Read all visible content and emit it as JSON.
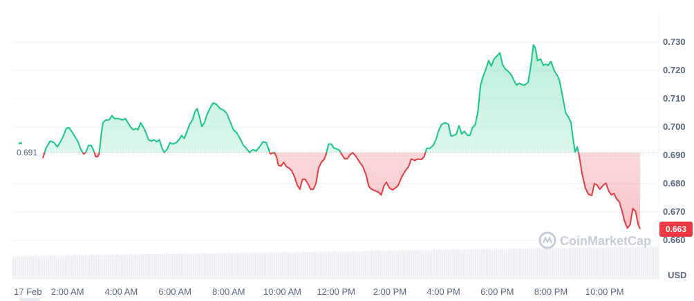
{
  "chart_data": {
    "type": "area",
    "x_labels": [
      "17 Feb",
      "2:00 AM",
      "4:00 AM",
      "6:00 AM",
      "8:00 AM",
      "10:00 AM",
      "12:00 PM",
      "2:00 PM",
      "4:00 PM",
      "6:00 PM",
      "8:00 PM",
      "10:00 PM"
    ],
    "x_label_hours": [
      0,
      2,
      4,
      6,
      8,
      10,
      12,
      14,
      16,
      18,
      20,
      22
    ],
    "y_ticks": [
      0.66,
      0.67,
      0.68,
      0.69,
      0.7,
      0.71,
      0.72,
      0.73
    ],
    "ylim": [
      0.6575,
      0.7365
    ],
    "xlim_hours": [
      0,
      24
    ],
    "ylabel": "USD",
    "baseline": 0.691,
    "baseline_label": "0.691",
    "last_label": "0.663",
    "colors": {
      "up": "#16c784",
      "down": "#ea3943",
      "up_fill": "#16c784",
      "down_fill": "#ea3943"
    },
    "watermark": "CoinMarketCap",
    "grid": true,
    "series": [
      {
        "points": [
          [
            0.18,
            0.694
          ],
          [
            0.25,
            0.6945
          ],
          [
            0.3,
            0.694
          ],
          [
            1.08,
            0.689
          ],
          [
            1.2,
            0.6925
          ],
          [
            1.35,
            0.695
          ],
          [
            1.5,
            0.6945
          ],
          [
            1.62,
            0.693
          ],
          [
            1.75,
            0.695
          ],
          [
            1.85,
            0.697
          ],
          [
            1.95,
            0.6995
          ],
          [
            2.05,
            0.6998
          ],
          [
            2.15,
            0.6985
          ],
          [
            2.25,
            0.697
          ],
          [
            2.38,
            0.695
          ],
          [
            2.5,
            0.692
          ],
          [
            2.6,
            0.6905
          ],
          [
            2.68,
            0.691
          ],
          [
            2.78,
            0.6935
          ],
          [
            2.88,
            0.6935
          ],
          [
            2.98,
            0.6915
          ],
          [
            3.05,
            0.6895
          ],
          [
            3.12,
            0.6895
          ],
          [
            3.18,
            0.6905
          ],
          [
            3.25,
            0.697
          ],
          [
            3.32,
            0.7015
          ],
          [
            3.42,
            0.7025
          ],
          [
            3.55,
            0.7025
          ],
          [
            3.65,
            0.704
          ],
          [
            3.75,
            0.703
          ],
          [
            3.9,
            0.703
          ],
          [
            4.05,
            0.7025
          ],
          [
            4.15,
            0.703
          ],
          [
            4.25,
            0.7015
          ],
          [
            4.35,
            0.7
          ],
          [
            4.45,
            0.699
          ],
          [
            4.55,
            0.6995
          ],
          [
            4.62,
            0.699
          ],
          [
            4.72,
            0.7015
          ],
          [
            4.82,
            0.7
          ],
          [
            4.92,
            0.698
          ],
          [
            5.02,
            0.6955
          ],
          [
            5.12,
            0.695
          ],
          [
            5.22,
            0.6955
          ],
          [
            5.32,
            0.6948
          ],
          [
            5.42,
            0.6955
          ],
          [
            5.52,
            0.6925
          ],
          [
            5.6,
            0.691
          ],
          [
            5.7,
            0.692
          ],
          [
            5.82,
            0.6945
          ],
          [
            5.92,
            0.694
          ],
          [
            6.05,
            0.6945
          ],
          [
            6.15,
            0.6955
          ],
          [
            6.25,
            0.697
          ],
          [
            6.35,
            0.696
          ],
          [
            6.45,
            0.6985
          ],
          [
            6.55,
            0.701
          ],
          [
            6.65,
            0.7025
          ],
          [
            6.75,
            0.7055
          ],
          [
            6.82,
            0.7065
          ],
          [
            6.92,
            0.7035
          ],
          [
            7.0,
            0.7002
          ],
          [
            7.1,
            0.7015
          ],
          [
            7.2,
            0.7045
          ],
          [
            7.3,
            0.7065
          ],
          [
            7.42,
            0.7085
          ],
          [
            7.55,
            0.708
          ],
          [
            7.68,
            0.7065
          ],
          [
            7.8,
            0.706
          ],
          [
            7.92,
            0.705
          ],
          [
            8.05,
            0.702
          ],
          [
            8.18,
            0.699
          ],
          [
            8.3,
            0.698
          ],
          [
            8.42,
            0.696
          ],
          [
            8.55,
            0.6935
          ],
          [
            8.65,
            0.6925
          ],
          [
            8.78,
            0.691
          ],
          [
            8.9,
            0.692
          ],
          [
            9.02,
            0.6915
          ],
          [
            9.15,
            0.693
          ],
          [
            9.28,
            0.6948
          ],
          [
            9.4,
            0.6945
          ],
          [
            9.55,
            0.6905
          ],
          [
            9.7,
            0.691
          ],
          [
            9.78,
            0.6895
          ],
          [
            9.85,
            0.6865
          ],
          [
            9.95,
            0.6862
          ],
          [
            10.05,
            0.6875
          ],
          [
            10.15,
            0.686
          ],
          [
            10.25,
            0.6855
          ],
          [
            10.35,
            0.6845
          ],
          [
            10.45,
            0.6825
          ],
          [
            10.55,
            0.6795
          ],
          [
            10.65,
            0.678
          ],
          [
            10.75,
            0.6815
          ],
          [
            10.85,
            0.6815
          ],
          [
            10.95,
            0.68
          ],
          [
            11.05,
            0.678
          ],
          [
            11.15,
            0.678
          ],
          [
            11.25,
            0.68
          ],
          [
            11.35,
            0.6855
          ],
          [
            11.45,
            0.6875
          ],
          [
            11.55,
            0.6885
          ],
          [
            11.62,
            0.69
          ],
          [
            11.72,
            0.694
          ],
          [
            11.82,
            0.694
          ],
          [
            11.92,
            0.6925
          ],
          [
            12.02,
            0.6923
          ],
          [
            12.12,
            0.6918
          ],
          [
            12.22,
            0.6902
          ],
          [
            12.32,
            0.6888
          ],
          [
            12.42,
            0.6888
          ],
          [
            12.52,
            0.6902
          ],
          [
            12.62,
            0.691
          ],
          [
            12.75,
            0.6895
          ],
          [
            12.88,
            0.6875
          ],
          [
            13.0,
            0.686
          ],
          [
            13.12,
            0.683
          ],
          [
            13.22,
            0.679
          ],
          [
            13.32,
            0.678
          ],
          [
            13.45,
            0.6775
          ],
          [
            13.58,
            0.677
          ],
          [
            13.68,
            0.676
          ],
          [
            13.78,
            0.6792
          ],
          [
            13.88,
            0.6805
          ],
          [
            13.98,
            0.6785
          ],
          [
            14.1,
            0.6778
          ],
          [
            14.22,
            0.6785
          ],
          [
            14.32,
            0.6795
          ],
          [
            14.45,
            0.6825
          ],
          [
            14.58,
            0.6845
          ],
          [
            14.7,
            0.686
          ],
          [
            14.8,
            0.6887
          ],
          [
            14.92,
            0.6882
          ],
          [
            15.05,
            0.6887
          ],
          [
            15.18,
            0.6885
          ],
          [
            15.28,
            0.6895
          ],
          [
            15.38,
            0.6925
          ],
          [
            15.5,
            0.6925
          ],
          [
            15.62,
            0.6935
          ],
          [
            15.72,
            0.6955
          ],
          [
            15.82,
            0.6988
          ],
          [
            15.92,
            0.7008
          ],
          [
            16.05,
            0.7015
          ],
          [
            16.18,
            0.701
          ],
          [
            16.28,
            0.6968
          ],
          [
            16.38,
            0.697
          ],
          [
            16.48,
            0.6975
          ],
          [
            16.58,
            0.7005
          ],
          [
            16.68,
            0.6975
          ],
          [
            16.78,
            0.6985
          ],
          [
            16.88,
            0.6972
          ],
          [
            16.98,
            0.697
          ],
          [
            17.08,
            0.6998
          ],
          [
            17.18,
            0.7008
          ],
          [
            17.28,
            0.7052
          ],
          [
            17.38,
            0.7148
          ],
          [
            17.48,
            0.718
          ],
          [
            17.58,
            0.7205
          ],
          [
            17.68,
            0.7235
          ],
          [
            17.78,
            0.7215
          ],
          [
            17.88,
            0.724
          ],
          [
            17.98,
            0.725
          ],
          [
            18.1,
            0.7262
          ],
          [
            18.2,
            0.722
          ],
          [
            18.3,
            0.7205
          ],
          [
            18.42,
            0.7195
          ],
          [
            18.52,
            0.7185
          ],
          [
            18.62,
            0.7165
          ],
          [
            18.72,
            0.7148
          ],
          [
            18.82,
            0.7155
          ],
          [
            18.92,
            0.715
          ],
          [
            19.02,
            0.7148
          ],
          [
            19.15,
            0.7158
          ],
          [
            19.25,
            0.7215
          ],
          [
            19.35,
            0.729
          ],
          [
            19.42,
            0.728
          ],
          [
            19.5,
            0.7235
          ],
          [
            19.62,
            0.724
          ],
          [
            19.72,
            0.7218
          ],
          [
            19.8,
            0.7222
          ],
          [
            19.9,
            0.7218
          ],
          [
            20.0,
            0.7232
          ],
          [
            20.12,
            0.72
          ],
          [
            20.22,
            0.7185
          ],
          [
            20.32,
            0.7165
          ],
          [
            20.42,
            0.7115
          ],
          [
            20.55,
            0.705
          ],
          [
            20.65,
            0.7035
          ],
          [
            20.75,
            0.7015
          ],
          [
            20.82,
            0.696
          ],
          [
            20.9,
            0.6912
          ],
          [
            20.98,
            0.693
          ],
          [
            21.05,
            0.69
          ],
          [
            21.15,
            0.684
          ],
          [
            21.28,
            0.6785
          ],
          [
            21.4,
            0.6762
          ],
          [
            21.52,
            0.6758
          ],
          [
            21.62,
            0.68
          ],
          [
            21.72,
            0.6795
          ],
          [
            21.82,
            0.678
          ],
          [
            21.95,
            0.6795
          ],
          [
            22.05,
            0.6802
          ],
          [
            22.15,
            0.6775
          ],
          [
            22.25,
            0.676
          ],
          [
            22.35,
            0.6765
          ],
          [
            22.45,
            0.6745
          ],
          [
            22.55,
            0.6735
          ],
          [
            22.65,
            0.6702
          ],
          [
            22.75,
            0.6665
          ],
          [
            22.85,
            0.6643
          ],
          [
            22.95,
            0.6655
          ],
          [
            23.05,
            0.6712
          ],
          [
            23.15,
            0.6702
          ],
          [
            23.25,
            0.6655
          ],
          [
            23.32,
            0.664
          ]
        ]
      }
    ]
  }
}
